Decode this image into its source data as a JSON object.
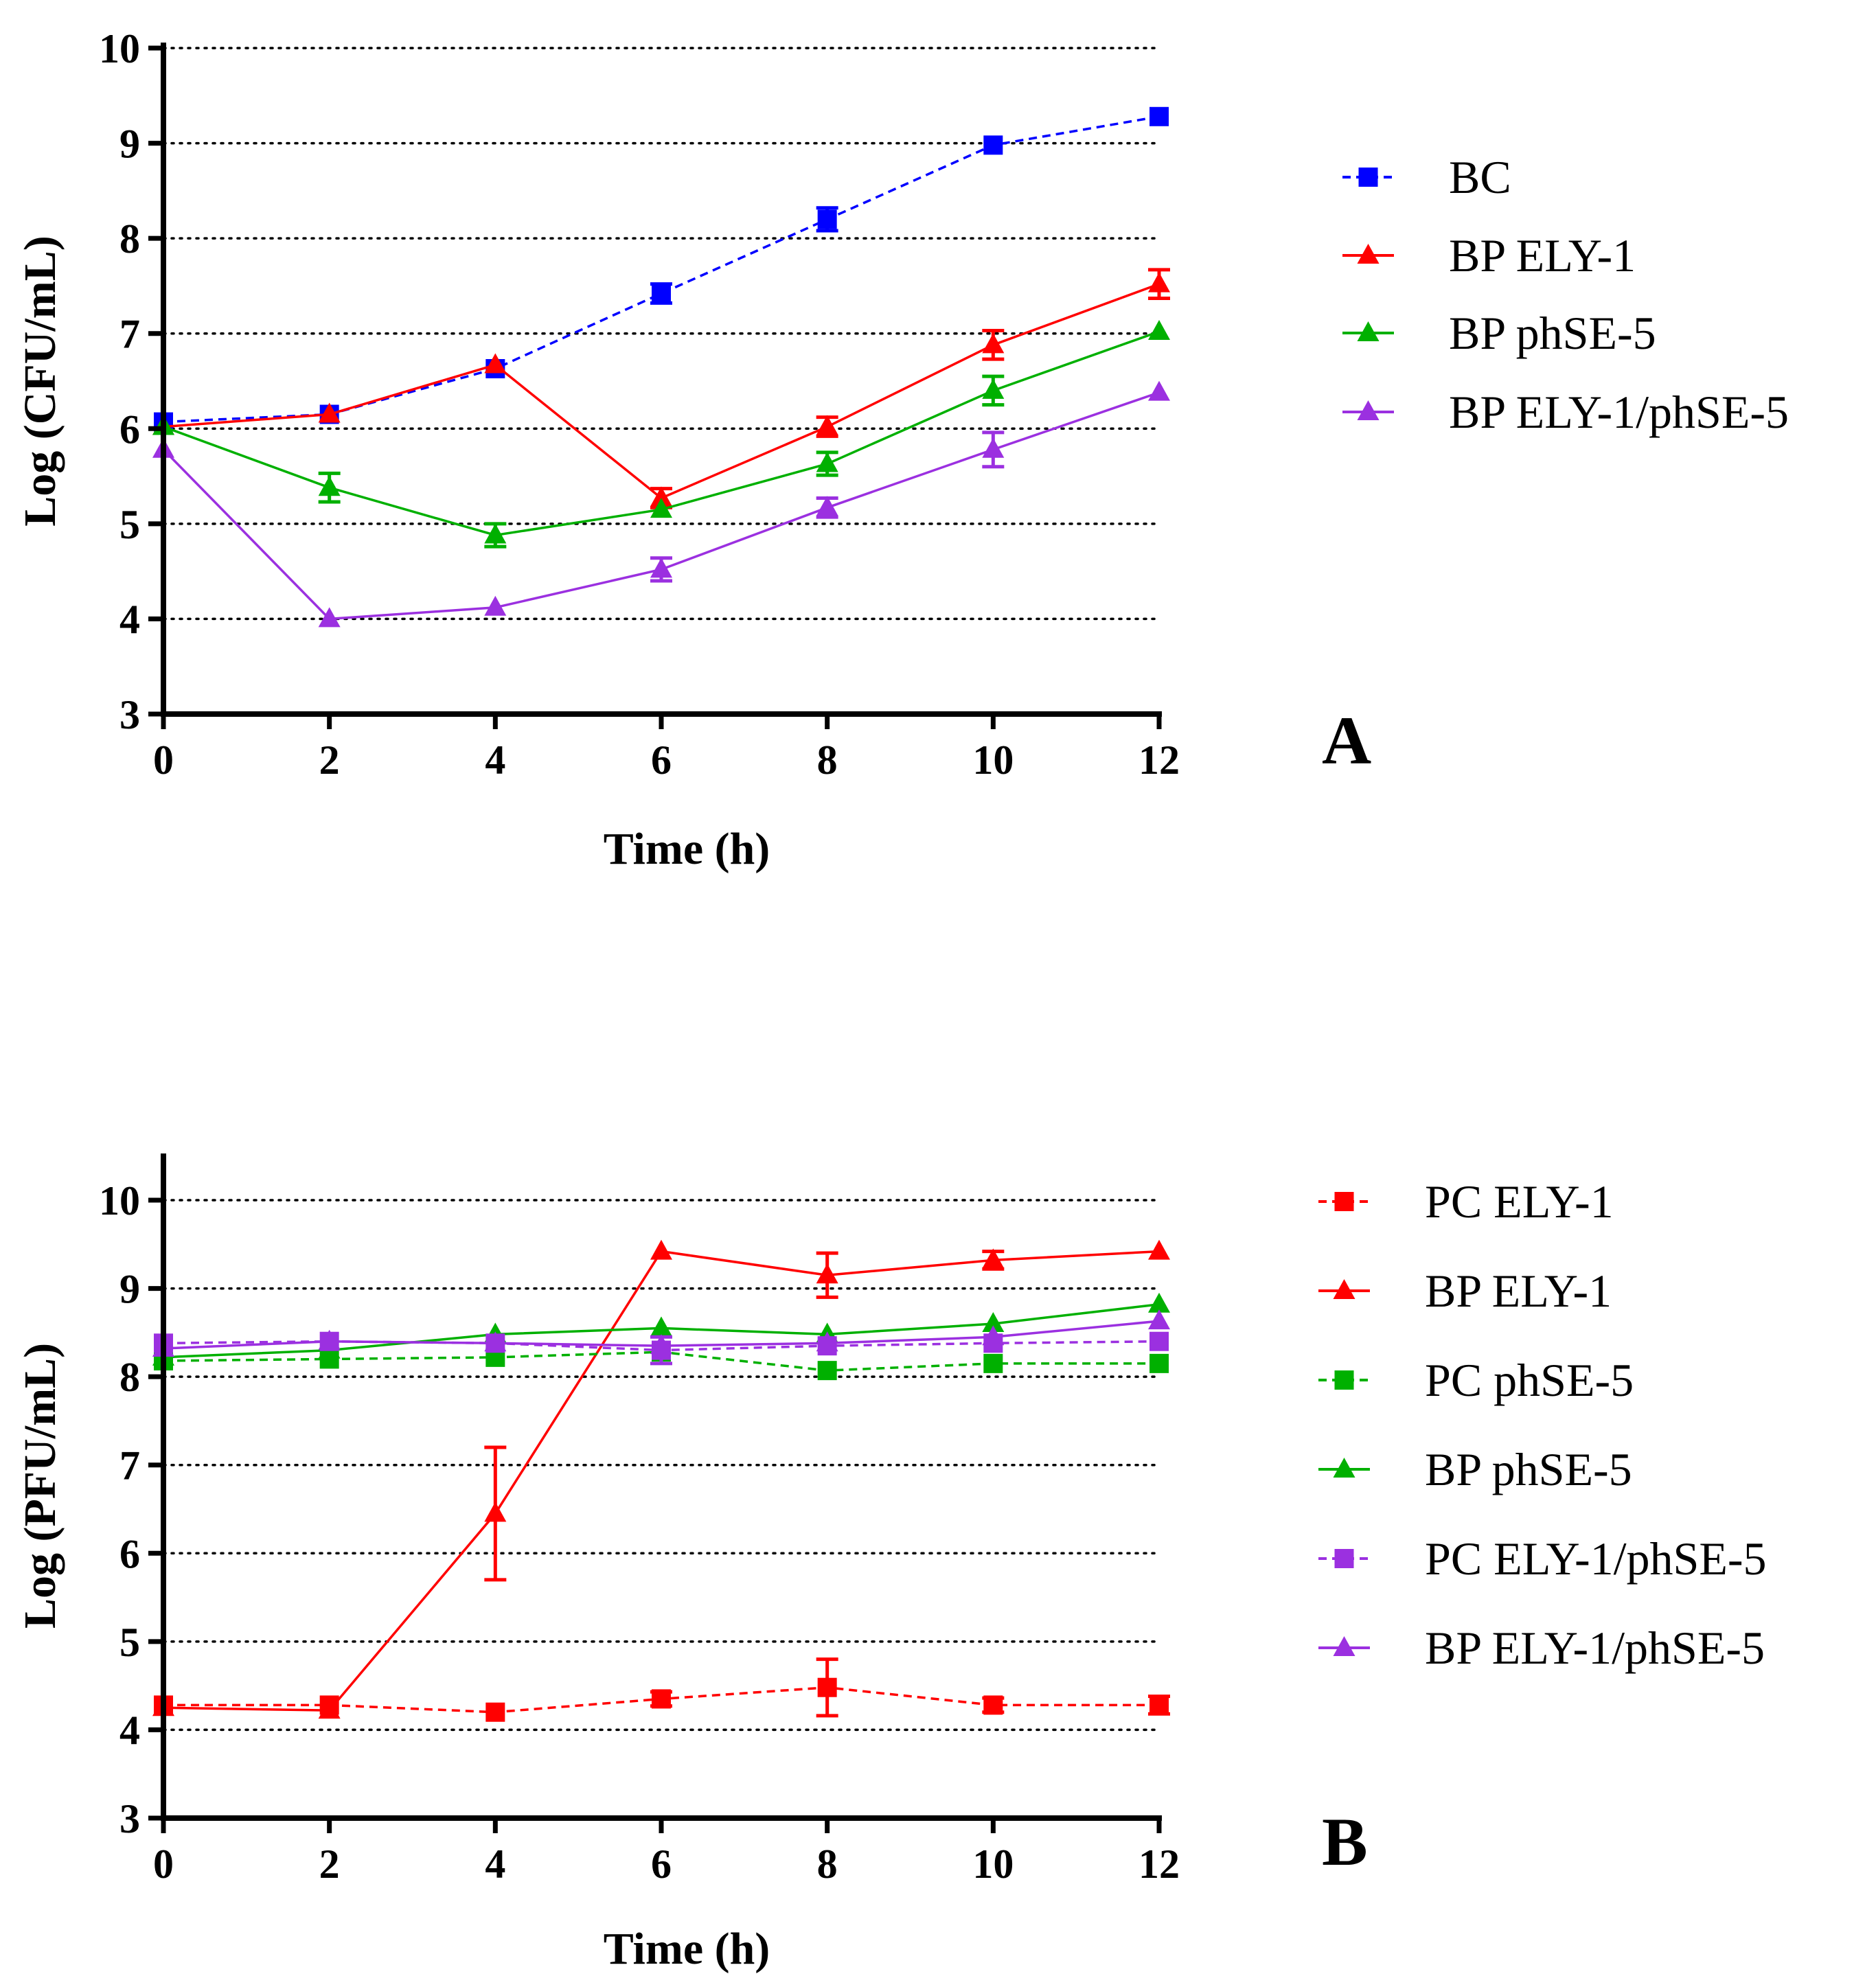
{
  "chart_data": [
    {
      "type": "line",
      "panel_label": "A",
      "xlabel": "Time (h)",
      "ylabel": "Log (CFU/mL)",
      "x": [
        0,
        2,
        4,
        6,
        8,
        10,
        12
      ],
      "xticks": [
        "0",
        "2",
        "4",
        "6",
        "8",
        "10",
        "12"
      ],
      "yticks": [
        "3",
        "4",
        "5",
        "6",
        "7",
        "8",
        "9",
        "10"
      ],
      "xlim": [
        0,
        12
      ],
      "ylim": [
        3,
        10
      ],
      "grid": "horizontal dotted",
      "legend_position": "right",
      "series": [
        {
          "name": "BC",
          "values": [
            6.07,
            6.15,
            6.63,
            7.42,
            8.2,
            8.98,
            9.28
          ],
          "errors": [
            0.05,
            0.05,
            0.05,
            0.1,
            0.12,
            0.05,
            0.05
          ],
          "color": "#0000ff",
          "marker": "square",
          "dashed": true
        },
        {
          "name": "BP ELY-1",
          "values": [
            6.02,
            6.15,
            6.67,
            5.27,
            6.02,
            6.88,
            7.52
          ],
          "errors": [
            0.05,
            0.05,
            0.05,
            0.1,
            0.1,
            0.15,
            0.15
          ],
          "color": "#ff0000",
          "marker": "triangle",
          "dashed": false
        },
        {
          "name": "BP phSE-5",
          "values": [
            6.02,
            5.38,
            4.88,
            5.15,
            5.63,
            6.4,
            7.02
          ],
          "errors": [
            0.05,
            0.15,
            0.12,
            0.05,
            0.12,
            0.15,
            0.05
          ],
          "color": "#00b000",
          "marker": "triangle",
          "dashed": false
        },
        {
          "name": "BP ELY-1/phSE-5",
          "values": [
            5.78,
            4.0,
            4.12,
            4.52,
            5.17,
            5.78,
            6.38
          ],
          "errors": [
            0.05,
            0.05,
            0.05,
            0.12,
            0.1,
            0.18,
            0.05
          ],
          "color": "#9b30e0",
          "marker": "triangle",
          "dashed": false
        }
      ]
    },
    {
      "type": "line",
      "panel_label": "B",
      "xlabel": "Time (h)",
      "ylabel": "Log (PFU/mL)",
      "x": [
        0,
        2,
        4,
        6,
        8,
        10,
        12
      ],
      "xticks": [
        "0",
        "2",
        "4",
        "6",
        "8",
        "10",
        "12"
      ],
      "yticks": [
        "3",
        "4",
        "5",
        "6",
        "7",
        "8",
        "9",
        "10"
      ],
      "xlim": [
        0,
        12
      ],
      "ylim": [
        3,
        10.5
      ],
      "grid": "horizontal dotted",
      "legend_position": "right",
      "series": [
        {
          "name": "PC ELY-1",
          "values": [
            4.28,
            4.28,
            4.2,
            4.35,
            4.48,
            4.28,
            4.28
          ],
          "errors": [
            0.05,
            0.05,
            0.05,
            0.08,
            0.32,
            0.08,
            0.1
          ],
          "color": "#ff0000",
          "marker": "square",
          "dashed": true
        },
        {
          "name": "BP ELY-1",
          "values": [
            4.25,
            4.22,
            6.45,
            9.42,
            9.15,
            9.32,
            9.42
          ],
          "errors": [
            0.05,
            0.05,
            0.75,
            0.05,
            0.25,
            0.1,
            0.05
          ],
          "color": "#ff0000",
          "marker": "triangle",
          "dashed": false
        },
        {
          "name": "PC phSE-5",
          "values": [
            8.18,
            8.2,
            8.22,
            8.28,
            8.07,
            8.15,
            8.15
          ],
          "errors": [
            0.05,
            0.05,
            0.05,
            0.05,
            0.05,
            0.05,
            0.05
          ],
          "color": "#00b000",
          "marker": "square",
          "dashed": true
        },
        {
          "name": "BP phSE-5",
          "values": [
            8.22,
            8.3,
            8.48,
            8.55,
            8.48,
            8.6,
            8.82
          ],
          "errors": [
            0.05,
            0.05,
            0.05,
            0.05,
            0.05,
            0.05,
            0.05
          ],
          "color": "#00b000",
          "marker": "triangle",
          "dashed": false
        },
        {
          "name": "PC ELY-1/phSE-5",
          "values": [
            8.38,
            8.4,
            8.38,
            8.3,
            8.35,
            8.38,
            8.4
          ],
          "errors": [
            0.05,
            0.05,
            0.05,
            0.15,
            0.05,
            0.05,
            0.05
          ],
          "color": "#9b30e0",
          "marker": "square",
          "dashed": true
        },
        {
          "name": "BP ELY-1/phSE-5",
          "values": [
            8.32,
            8.4,
            8.38,
            8.35,
            8.38,
            8.45,
            8.63
          ],
          "errors": [
            0.05,
            0.05,
            0.05,
            0.05,
            0.05,
            0.05,
            0.05
          ],
          "color": "#9b30e0",
          "marker": "triangle",
          "dashed": false
        }
      ]
    }
  ]
}
